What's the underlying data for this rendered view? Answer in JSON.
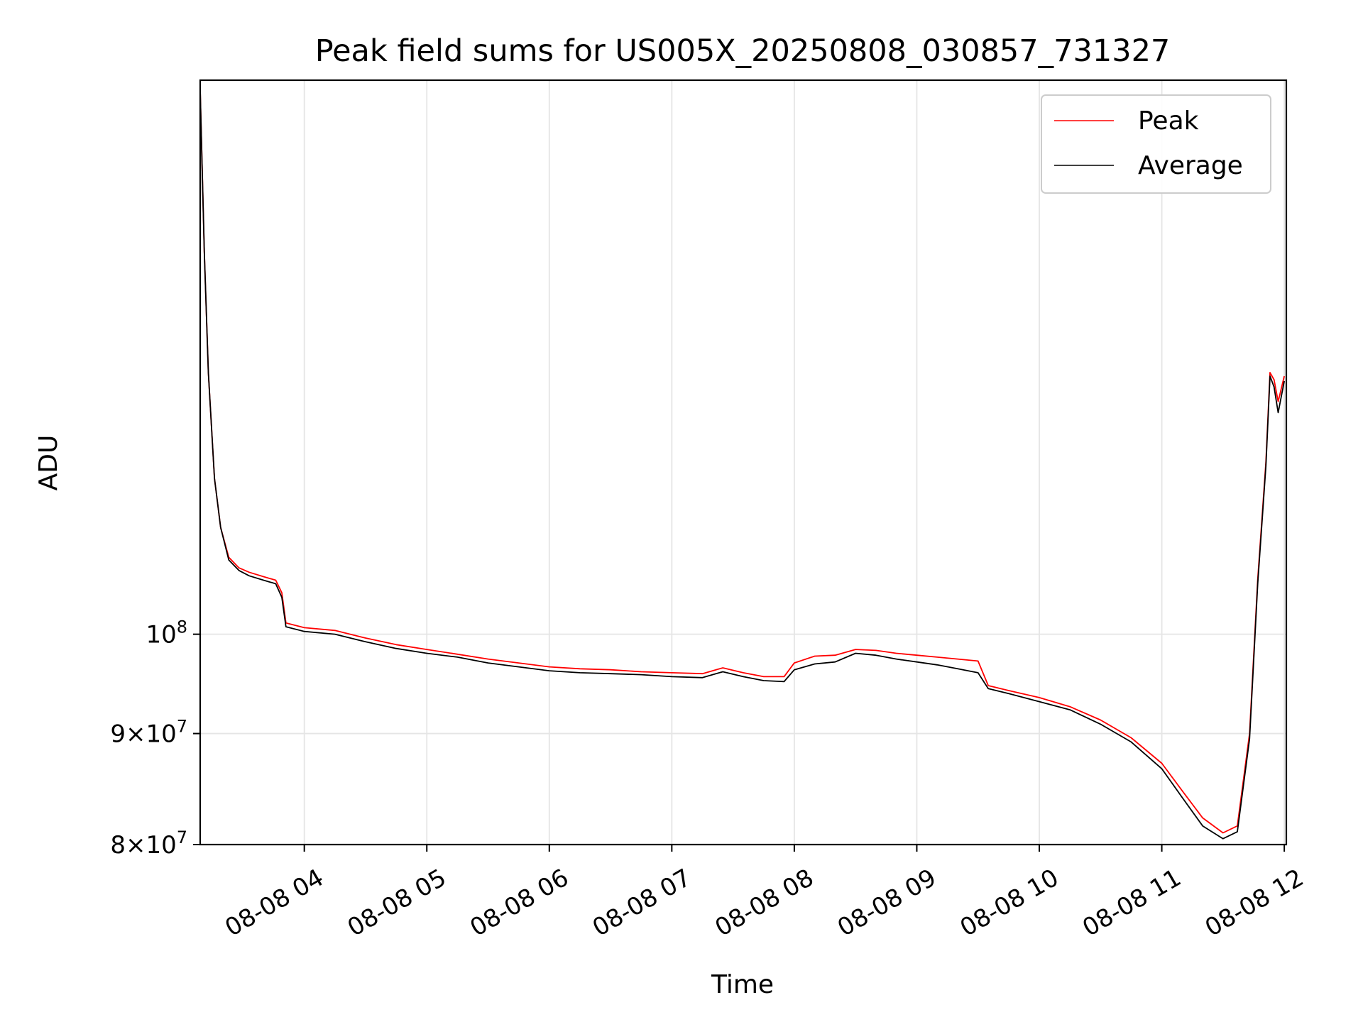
{
  "chart_data": {
    "type": "line",
    "title": "Peak field sums for US005X_20250808_030857_731327",
    "xlabel": "Time",
    "ylabel": "ADU",
    "y_scale": "log",
    "grid": true,
    "legend_position": "top-right",
    "xlim": [
      "08-08 03:09",
      "08-08 12:01"
    ],
    "ylim": [
      80000000,
      180000000
    ],
    "x_ticks": [
      "08-08 04",
      "08-08 05",
      "08-08 06",
      "08-08 07",
      "08-08 08",
      "08-08 09",
      "08-08 10",
      "08-08 11",
      "08-08 12"
    ],
    "y_ticks": [
      {
        "value": 80000000,
        "mantissa": "8",
        "base": "10",
        "exp": "7"
      },
      {
        "value": 90000000,
        "mantissa": "9",
        "base": "10",
        "exp": "7"
      },
      {
        "value": 100000000,
        "mantissa": "",
        "base": "10",
        "exp": "8"
      }
    ],
    "series": [
      {
        "name": "Peak",
        "color": "#ff0000",
        "points": [
          [
            "03:09",
            178000000
          ],
          [
            "03:11",
            150000000
          ],
          [
            "03:13",
            132000000
          ],
          [
            "03:16",
            118000000
          ],
          [
            "03:19",
            112000000
          ],
          [
            "03:23",
            108500000
          ],
          [
            "03:28",
            107300000
          ],
          [
            "03:33",
            106800000
          ],
          [
            "03:40",
            106300000
          ],
          [
            "03:46",
            105900000
          ],
          [
            "03:49",
            104500000
          ],
          [
            "03:51",
            101200000
          ],
          [
            "04:00",
            100700000
          ],
          [
            "04:15",
            100400000
          ],
          [
            "04:30",
            99600000
          ],
          [
            "04:45",
            98900000
          ],
          [
            "05:00",
            98400000
          ],
          [
            "05:15",
            97900000
          ],
          [
            "05:30",
            97400000
          ],
          [
            "05:45",
            97000000
          ],
          [
            "06:00",
            96600000
          ],
          [
            "06:15",
            96400000
          ],
          [
            "06:30",
            96300000
          ],
          [
            "06:45",
            96100000
          ],
          [
            "07:00",
            96000000
          ],
          [
            "07:15",
            95900000
          ],
          [
            "07:25",
            96500000
          ],
          [
            "07:35",
            96000000
          ],
          [
            "07:45",
            95600000
          ],
          [
            "07:55",
            95600000
          ],
          [
            "08:00",
            97000000
          ],
          [
            "08:10",
            97700000
          ],
          [
            "08:20",
            97800000
          ],
          [
            "08:30",
            98400000
          ],
          [
            "08:40",
            98300000
          ],
          [
            "08:50",
            98000000
          ],
          [
            "09:00",
            97800000
          ],
          [
            "09:10",
            97600000
          ],
          [
            "09:20",
            97400000
          ],
          [
            "09:30",
            97200000
          ],
          [
            "09:35",
            94700000
          ],
          [
            "09:45",
            94200000
          ],
          [
            "10:00",
            93500000
          ],
          [
            "10:15",
            92600000
          ],
          [
            "10:30",
            91300000
          ],
          [
            "10:45",
            89600000
          ],
          [
            "11:00",
            87200000
          ],
          [
            "11:10",
            84700000
          ],
          [
            "11:20",
            82300000
          ],
          [
            "11:30",
            81000000
          ],
          [
            "11:37",
            81600000
          ],
          [
            "11:43",
            90000000
          ],
          [
            "11:47",
            106000000
          ],
          [
            "11:51",
            120000000
          ],
          [
            "11:53",
            132000000
          ],
          [
            "11:55",
            131000000
          ],
          [
            "11:57",
            128000000
          ],
          [
            "12:00",
            131500000
          ]
        ]
      },
      {
        "name": "Average",
        "color": "#000000",
        "points": [
          [
            "03:09",
            178000000
          ],
          [
            "03:11",
            150000000
          ],
          [
            "03:13",
            132000000
          ],
          [
            "03:16",
            118000000
          ],
          [
            "03:19",
            112000000
          ],
          [
            "03:23",
            108200000
          ],
          [
            "03:28",
            107000000
          ],
          [
            "03:33",
            106400000
          ],
          [
            "03:40",
            105900000
          ],
          [
            "03:46",
            105500000
          ],
          [
            "03:49",
            104000000
          ],
          [
            "03:51",
            100800000
          ],
          [
            "04:00",
            100300000
          ],
          [
            "04:15",
            100000000
          ],
          [
            "04:30",
            99200000
          ],
          [
            "04:45",
            98500000
          ],
          [
            "05:00",
            98000000
          ],
          [
            "05:15",
            97600000
          ],
          [
            "05:30",
            97000000
          ],
          [
            "05:45",
            96600000
          ],
          [
            "06:00",
            96200000
          ],
          [
            "06:15",
            96000000
          ],
          [
            "06:30",
            95900000
          ],
          [
            "06:45",
            95800000
          ],
          [
            "07:00",
            95600000
          ],
          [
            "07:15",
            95500000
          ],
          [
            "07:25",
            96100000
          ],
          [
            "07:35",
            95600000
          ],
          [
            "07:45",
            95200000
          ],
          [
            "07:55",
            95100000
          ],
          [
            "08:00",
            96300000
          ],
          [
            "08:10",
            96900000
          ],
          [
            "08:20",
            97100000
          ],
          [
            "08:30",
            98000000
          ],
          [
            "08:40",
            97800000
          ],
          [
            "08:50",
            97400000
          ],
          [
            "09:00",
            97100000
          ],
          [
            "09:10",
            96800000
          ],
          [
            "09:20",
            96400000
          ],
          [
            "09:30",
            96000000
          ],
          [
            "09:35",
            94400000
          ],
          [
            "09:45",
            93900000
          ],
          [
            "10:00",
            93100000
          ],
          [
            "10:15",
            92300000
          ],
          [
            "10:30",
            90900000
          ],
          [
            "10:45",
            89200000
          ],
          [
            "11:00",
            86700000
          ],
          [
            "11:10",
            84100000
          ],
          [
            "11:20",
            81600000
          ],
          [
            "11:30",
            80500000
          ],
          [
            "11:37",
            81100000
          ],
          [
            "11:43",
            89500000
          ],
          [
            "11:47",
            105500000
          ],
          [
            "11:51",
            119500000
          ],
          [
            "11:53",
            131500000
          ],
          [
            "11:55",
            130000000
          ],
          [
            "11:57",
            126500000
          ],
          [
            "12:00",
            130800000
          ]
        ]
      }
    ]
  }
}
